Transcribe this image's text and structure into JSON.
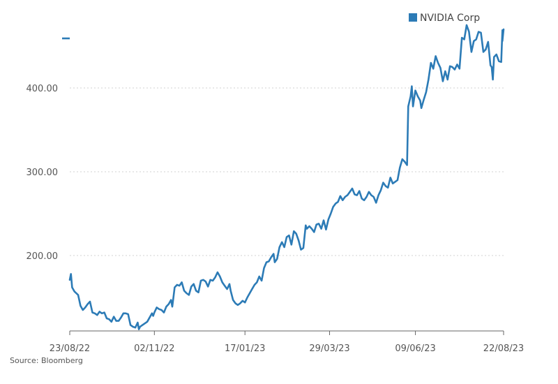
{
  "chart_data": {
    "type": "line",
    "title": "",
    "xlabel": "",
    "ylabel": "",
    "ylim": [
      110,
      480
    ],
    "xlim": [
      "2022-08-23",
      "2023-08-22"
    ],
    "legend": {
      "position": "top-right",
      "entries": [
        "NVIDIA Corp"
      ]
    },
    "grid": {
      "y": true,
      "x": false,
      "style": "dotted"
    },
    "y_ticks": [
      {
        "value": 200,
        "label": "200.00"
      },
      {
        "value": 300,
        "label": "300.00"
      },
      {
        "value": 400,
        "label": "400.00"
      }
    ],
    "x_ticks": [
      {
        "date": "2022-08-23",
        "label": "23/08/22"
      },
      {
        "date": "2022-11-02",
        "label": "02/11/22"
      },
      {
        "date": "2023-01-17",
        "label": "17/01/23"
      },
      {
        "date": "2023-03-29",
        "label": "29/03/23"
      },
      {
        "date": "2023-06-09",
        "label": "09/06/23"
      },
      {
        "date": "2023-08-22",
        "label": "22/08/23"
      }
    ],
    "series": [
      {
        "name": "NVIDIA Corp",
        "color": "#2c7bb6",
        "points": [
          [
            "2022-08-23",
            171
          ],
          [
            "2022-08-24",
            178
          ],
          [
            "2022-08-25",
            162
          ],
          [
            "2022-08-27",
            157
          ],
          [
            "2022-08-30",
            153
          ],
          [
            "2022-09-01",
            140
          ],
          [
            "2022-09-03",
            135
          ],
          [
            "2022-09-05",
            138
          ],
          [
            "2022-09-07",
            142
          ],
          [
            "2022-09-09",
            145
          ],
          [
            "2022-09-11",
            132
          ],
          [
            "2022-09-13",
            131
          ],
          [
            "2022-09-15",
            129
          ],
          [
            "2022-09-17",
            133
          ],
          [
            "2022-09-19",
            131
          ],
          [
            "2022-09-21",
            132
          ],
          [
            "2022-09-23",
            125
          ],
          [
            "2022-09-25",
            124
          ],
          [
            "2022-09-27",
            121
          ],
          [
            "2022-09-29",
            127
          ],
          [
            "2022-10-01",
            122
          ],
          [
            "2022-10-03",
            122
          ],
          [
            "2022-10-05",
            126
          ],
          [
            "2022-10-07",
            131
          ],
          [
            "2022-10-09",
            131
          ],
          [
            "2022-10-11",
            130
          ],
          [
            "2022-10-13",
            117
          ],
          [
            "2022-10-15",
            115
          ],
          [
            "2022-10-17",
            114
          ],
          [
            "2022-10-19",
            120
          ],
          [
            "2022-10-20",
            112
          ],
          [
            "2022-10-21",
            115
          ],
          [
            "2022-10-23",
            117
          ],
          [
            "2022-10-25",
            119
          ],
          [
            "2022-10-27",
            121
          ],
          [
            "2022-10-29",
            126
          ],
          [
            "2022-10-31",
            131
          ],
          [
            "2022-11-01",
            128
          ],
          [
            "2022-11-02",
            132
          ],
          [
            "2022-11-04",
            138
          ],
          [
            "2022-11-06",
            136
          ],
          [
            "2022-11-08",
            135
          ],
          [
            "2022-11-10",
            132
          ],
          [
            "2022-11-12",
            139
          ],
          [
            "2022-11-14",
            142
          ],
          [
            "2022-11-16",
            147
          ],
          [
            "2022-11-17",
            139
          ],
          [
            "2022-11-19",
            162
          ],
          [
            "2022-11-21",
            165
          ],
          [
            "2022-11-23",
            164
          ],
          [
            "2022-11-25",
            168
          ],
          [
            "2022-11-27",
            158
          ],
          [
            "2022-11-29",
            155
          ],
          [
            "2022-12-01",
            153
          ],
          [
            "2022-12-03",
            163
          ],
          [
            "2022-12-05",
            166
          ],
          [
            "2022-12-07",
            158
          ],
          [
            "2022-12-09",
            156
          ],
          [
            "2022-12-11",
            170
          ],
          [
            "2022-12-13",
            171
          ],
          [
            "2022-12-15",
            169
          ],
          [
            "2022-12-17",
            163
          ],
          [
            "2022-12-19",
            171
          ],
          [
            "2022-12-21",
            170
          ],
          [
            "2022-12-23",
            174
          ],
          [
            "2022-12-25",
            180
          ],
          [
            "2022-12-27",
            175
          ],
          [
            "2022-12-29",
            168
          ],
          [
            "2022-12-31",
            164
          ],
          [
            "2023-01-02",
            160
          ],
          [
            "2023-01-04",
            166
          ],
          [
            "2023-01-05",
            158
          ],
          [
            "2023-01-07",
            147
          ],
          [
            "2023-01-09",
            143
          ],
          [
            "2023-01-11",
            141
          ],
          [
            "2023-01-13",
            143
          ],
          [
            "2023-01-15",
            146
          ],
          [
            "2023-01-17",
            144
          ],
          [
            "2023-01-19",
            150
          ],
          [
            "2023-01-21",
            155
          ],
          [
            "2023-01-23",
            160
          ],
          [
            "2023-01-25",
            165
          ],
          [
            "2023-01-27",
            168
          ],
          [
            "2023-01-29",
            175
          ],
          [
            "2023-01-31",
            170
          ],
          [
            "2023-02-02",
            185
          ],
          [
            "2023-02-04",
            192
          ],
          [
            "2023-02-06",
            193
          ],
          [
            "2023-02-08",
            198
          ],
          [
            "2023-02-10",
            202
          ],
          [
            "2023-02-11",
            192
          ],
          [
            "2023-02-13",
            196
          ],
          [
            "2023-02-15",
            210
          ],
          [
            "2023-02-17",
            216
          ],
          [
            "2023-02-19",
            210
          ],
          [
            "2023-02-21",
            222
          ],
          [
            "2023-02-23",
            224
          ],
          [
            "2023-02-25",
            213
          ],
          [
            "2023-02-27",
            229
          ],
          [
            "2023-03-01",
            226
          ],
          [
            "2023-03-03",
            218
          ],
          [
            "2023-03-05",
            207
          ],
          [
            "2023-03-07",
            209
          ],
          [
            "2023-03-09",
            236
          ],
          [
            "2023-03-10",
            232
          ],
          [
            "2023-03-12",
            235
          ],
          [
            "2023-03-14",
            232
          ],
          [
            "2023-03-16",
            228
          ],
          [
            "2023-03-18",
            237
          ],
          [
            "2023-03-20",
            238
          ],
          [
            "2023-03-22",
            232
          ],
          [
            "2023-03-24",
            242
          ],
          [
            "2023-03-26",
            231
          ],
          [
            "2023-03-28",
            243
          ],
          [
            "2023-03-30",
            250
          ],
          [
            "2023-04-01",
            258
          ],
          [
            "2023-04-03",
            262
          ],
          [
            "2023-04-05",
            264
          ],
          [
            "2023-04-07",
            271
          ],
          [
            "2023-04-09",
            266
          ],
          [
            "2023-04-11",
            270
          ],
          [
            "2023-04-13",
            272
          ],
          [
            "2023-04-15",
            276
          ],
          [
            "2023-04-17",
            280
          ],
          [
            "2023-04-19",
            273
          ],
          [
            "2023-04-21",
            272
          ],
          [
            "2023-04-23",
            277
          ],
          [
            "2023-04-25",
            268
          ],
          [
            "2023-04-27",
            266
          ],
          [
            "2023-04-29",
            270
          ],
          [
            "2023-05-01",
            276
          ],
          [
            "2023-05-03",
            272
          ],
          [
            "2023-05-05",
            270
          ],
          [
            "2023-05-07",
            263
          ],
          [
            "2023-05-09",
            272
          ],
          [
            "2023-05-11",
            278
          ],
          [
            "2023-05-13",
            287
          ],
          [
            "2023-05-15",
            283
          ],
          [
            "2023-05-17",
            281
          ],
          [
            "2023-05-19",
            293
          ],
          [
            "2023-05-21",
            286
          ],
          [
            "2023-05-23",
            288
          ],
          [
            "2023-05-25",
            290
          ],
          [
            "2023-05-27",
            305
          ],
          [
            "2023-05-29",
            315
          ],
          [
            "2023-05-31",
            312
          ],
          [
            "2023-06-02",
            308
          ],
          [
            "2023-06-03",
            378
          ],
          [
            "2023-06-05",
            390
          ],
          [
            "2023-06-06",
            402
          ],
          [
            "2023-06-07",
            378
          ],
          [
            "2023-06-09",
            397
          ],
          [
            "2023-06-11",
            390
          ],
          [
            "2023-06-13",
            385
          ],
          [
            "2023-06-14",
            376
          ],
          [
            "2023-06-16",
            386
          ],
          [
            "2023-06-18",
            395
          ],
          [
            "2023-06-20",
            410
          ],
          [
            "2023-06-22",
            430
          ],
          [
            "2023-06-24",
            423
          ],
          [
            "2023-06-26",
            438
          ],
          [
            "2023-06-28",
            430
          ],
          [
            "2023-06-30",
            424
          ],
          [
            "2023-07-02",
            408
          ],
          [
            "2023-07-04",
            420
          ],
          [
            "2023-07-06",
            410
          ],
          [
            "2023-07-08",
            426
          ],
          [
            "2023-07-10",
            425
          ],
          [
            "2023-07-12",
            422
          ],
          [
            "2023-07-14",
            428
          ],
          [
            "2023-07-16",
            423
          ],
          [
            "2023-07-18",
            460
          ],
          [
            "2023-07-20",
            458
          ],
          [
            "2023-07-22",
            475
          ],
          [
            "2023-07-24",
            467
          ],
          [
            "2023-07-26",
            443
          ],
          [
            "2023-07-28",
            456
          ],
          [
            "2023-07-30",
            458
          ],
          [
            "2023-08-01",
            467
          ],
          [
            "2023-08-03",
            466
          ],
          [
            "2023-08-05",
            443
          ],
          [
            "2023-08-07",
            446
          ],
          [
            "2023-08-09",
            455
          ],
          [
            "2023-08-11",
            427
          ],
          [
            "2023-08-12",
            425
          ],
          [
            "2023-08-13",
            410
          ],
          [
            "2023-08-14",
            437
          ],
          [
            "2023-08-16",
            440
          ],
          [
            "2023-08-18",
            432
          ],
          [
            "2023-08-20",
            431
          ],
          [
            "2023-08-21",
            469
          ],
          [
            "2023-08-21",
            456
          ],
          [
            "2023-08-22",
            470
          ]
        ]
      }
    ]
  },
  "footer": {
    "source": "Source: Bloomberg"
  }
}
